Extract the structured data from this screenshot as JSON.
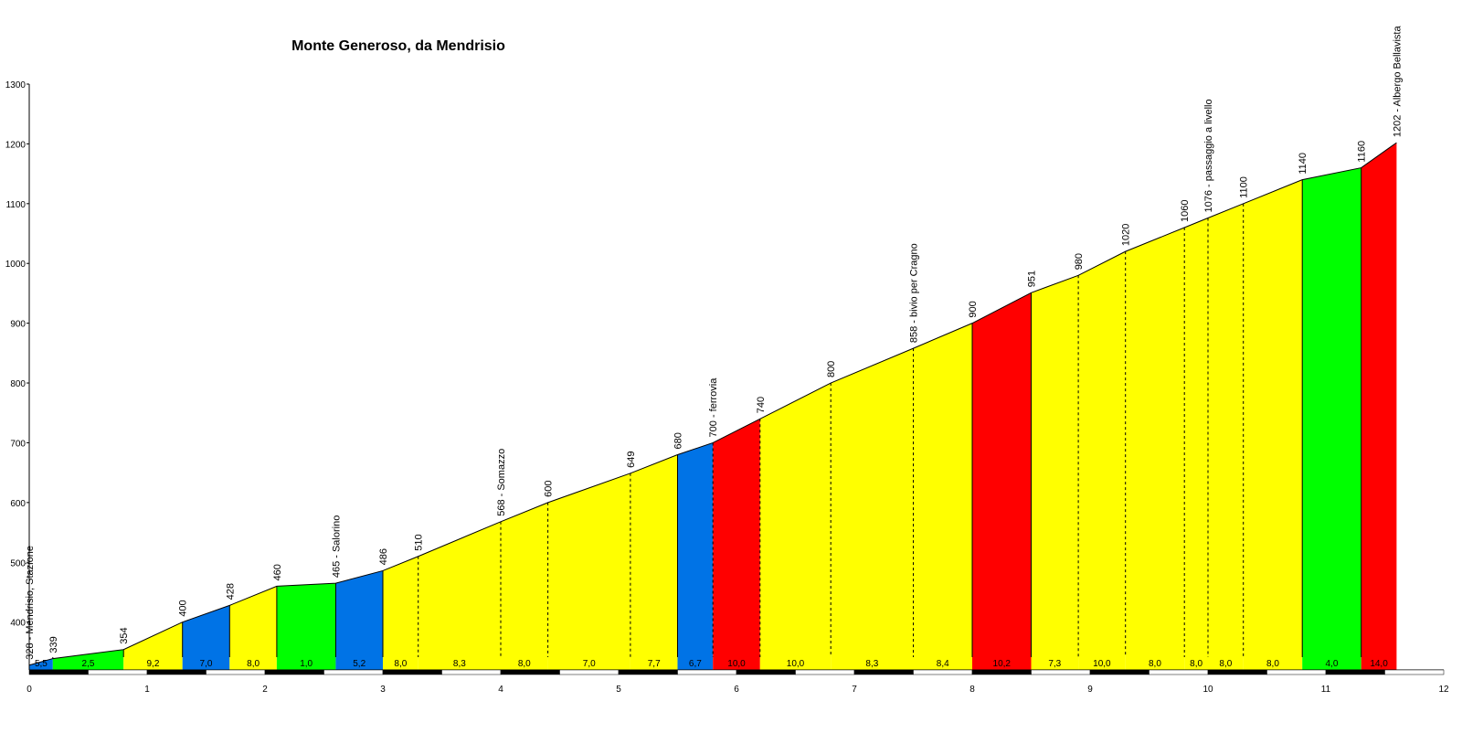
{
  "chart_data": {
    "type": "area",
    "title": "Monte Generoso, da Mendrisio",
    "xlabel": "",
    "ylabel": "",
    "xlim": [
      0,
      12
    ],
    "ylim": [
      320,
      1300
    ],
    "x_ticks": [
      "0",
      "1",
      "2",
      "3",
      "4",
      "5",
      "6",
      "7",
      "8",
      "9",
      "10",
      "11",
      "12"
    ],
    "y_ticks": [
      "1300",
      "1200",
      "1100",
      "1000",
      "900",
      "800",
      "700",
      "600",
      "500",
      "400"
    ],
    "colors": {
      "green": "#00ff00",
      "yellow": "#ffff00",
      "blue": "#0073e6",
      "red": "#ff0000",
      "profile": "#000000"
    },
    "points": [
      {
        "x": 0.0,
        "y": 328,
        "label": "328 - Mendrisio, Stazione"
      },
      {
        "x": 0.2,
        "y": 339,
        "label": "339"
      },
      {
        "x": 0.8,
        "y": 354,
        "label": "354"
      },
      {
        "x": 1.3,
        "y": 400,
        "label": "400"
      },
      {
        "x": 1.7,
        "y": 428,
        "label": "428"
      },
      {
        "x": 2.1,
        "y": 460,
        "label": "460"
      },
      {
        "x": 2.6,
        "y": 465,
        "label": "465 - Salorino"
      },
      {
        "x": 3.0,
        "y": 486,
        "label": "486"
      },
      {
        "x": 3.3,
        "y": 510,
        "label": "510"
      },
      {
        "x": 4.0,
        "y": 568,
        "label": "568 - Somazzo"
      },
      {
        "x": 4.4,
        "y": 600,
        "label": "600"
      },
      {
        "x": 5.1,
        "y": 649,
        "label": "649"
      },
      {
        "x": 5.5,
        "y": 680,
        "label": "680"
      },
      {
        "x": 5.8,
        "y": 700,
        "label": "700 - ferrovia"
      },
      {
        "x": 6.2,
        "y": 740,
        "label": "740"
      },
      {
        "x": 6.8,
        "y": 800,
        "label": "800"
      },
      {
        "x": 7.5,
        "y": 858,
        "label": "858 - bivio per Cragno"
      },
      {
        "x": 8.0,
        "y": 900,
        "label": "900"
      },
      {
        "x": 8.5,
        "y": 951,
        "label": "951"
      },
      {
        "x": 8.9,
        "y": 980,
        "label": "980"
      },
      {
        "x": 9.3,
        "y": 1020,
        "label": "1020"
      },
      {
        "x": 9.8,
        "y": 1060,
        "label": "1060"
      },
      {
        "x": 10.0,
        "y": 1076,
        "label": "1076 - passaggio a livello"
      },
      {
        "x": 10.3,
        "y": 1100,
        "label": "1100"
      },
      {
        "x": 10.8,
        "y": 1140,
        "label": "1140"
      },
      {
        "x": 11.3,
        "y": 1160,
        "label": "1160"
      },
      {
        "x": 11.6,
        "y": 1202,
        "label": "1202 - Albergo Bellavista"
      }
    ],
    "segments": [
      {
        "gradient": "5,5",
        "color": "blue",
        "divider": "solid"
      },
      {
        "gradient": "2,5",
        "color": "green",
        "divider": "solid"
      },
      {
        "gradient": "9,2",
        "color": "yellow",
        "divider": "solid"
      },
      {
        "gradient": "7,0",
        "color": "blue",
        "divider": "solid"
      },
      {
        "gradient": "8,0",
        "color": "yellow",
        "divider": "solid"
      },
      {
        "gradient": "1,0",
        "color": "green",
        "divider": "solid"
      },
      {
        "gradient": "5,2",
        "color": "blue",
        "divider": "solid"
      },
      {
        "gradient": "8,0",
        "color": "yellow",
        "divider": "dashed"
      },
      {
        "gradient": "8,3",
        "color": "yellow",
        "divider": "dashed"
      },
      {
        "gradient": "8,0",
        "color": "yellow",
        "divider": "dashed"
      },
      {
        "gradient": "7,0",
        "color": "yellow",
        "divider": "dashed"
      },
      {
        "gradient": "7,7",
        "color": "yellow",
        "divider": "solid"
      },
      {
        "gradient": "6,7",
        "color": "blue",
        "divider": "dashed"
      },
      {
        "gradient": "10,0",
        "color": "red",
        "divider": "dashed"
      },
      {
        "gradient": "10,0",
        "color": "yellow",
        "divider": "dashed"
      },
      {
        "gradient": "8,3",
        "color": "yellow",
        "divider": "dashed"
      },
      {
        "gradient": "8,4",
        "color": "yellow",
        "divider": "solid"
      },
      {
        "gradient": "10,2",
        "color": "red",
        "divider": "solid"
      },
      {
        "gradient": "7,3",
        "color": "yellow",
        "divider": "dashed"
      },
      {
        "gradient": "10,0",
        "color": "yellow",
        "divider": "dashed"
      },
      {
        "gradient": "8,0",
        "color": "yellow",
        "divider": "dashed"
      },
      {
        "gradient": "8,0",
        "color": "yellow",
        "divider": "dashed"
      },
      {
        "gradient": "8,0",
        "color": "yellow",
        "divider": "dashed"
      },
      {
        "gradient": "8,0",
        "color": "yellow",
        "divider": "solid"
      },
      {
        "gradient": "4,0",
        "color": "green",
        "divider": "solid"
      },
      {
        "gradient": "14,0",
        "color": "red",
        "divider": "solid"
      }
    ]
  }
}
